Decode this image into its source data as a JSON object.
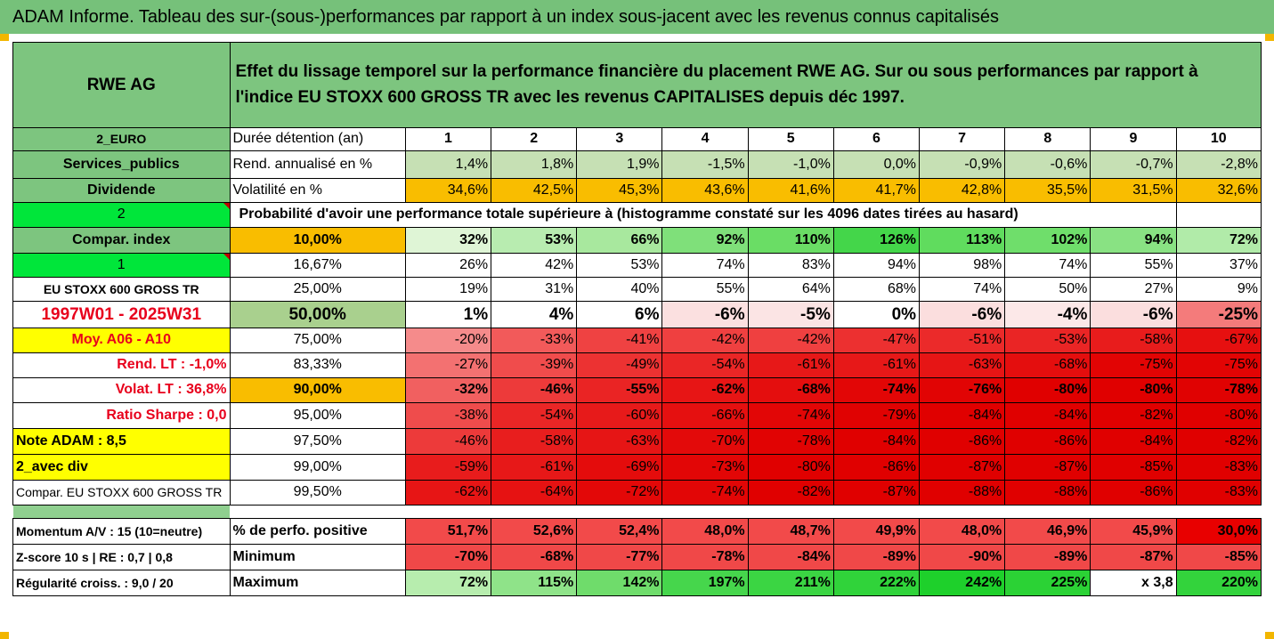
{
  "title": "ADAM Informe. Tableau des sur-(sous-)performances par rapport à un index sous-jacent avec les revenus connus capitalisés",
  "header": {
    "stock": "RWE AG",
    "description": "Effet du lissage temporel sur la performance financière du placement RWE AG. Sur ou sous performances par rapport à l'indice EU STOXX 600 GROSS TR avec les revenus CAPITALISES depuis déc 1997."
  },
  "colors": {
    "title_green": "#76c17a",
    "label_green": "#7dc57f",
    "orange": "#f9bd00",
    "yellow": "#ffff00",
    "bright_green": "#00e63a"
  },
  "rows": [
    {
      "label": "2_EURO",
      "label_bg": "#7dc57f",
      "label_bold": true,
      "label_size": "sm",
      "key": "Durée détention (an)",
      "key_bg": "#ffffff",
      "key_align": "left",
      "type": "header",
      "values": [
        "1",
        "2",
        "3",
        "4",
        "5",
        "6",
        "7",
        "8",
        "9",
        "10"
      ],
      "bgs": [
        "#fff",
        "#fff",
        "#fff",
        "#fff",
        "#fff",
        "#fff",
        "#fff",
        "#fff",
        "#fff",
        "#fff"
      ]
    },
    {
      "label": "Services_publics",
      "label_bg": "#7dc57f",
      "label_bold": true,
      "key": "Rend. annualisé en %",
      "key_bg": "#ffffff",
      "key_align": "left",
      "values": [
        "1,4%",
        "1,8%",
        "1,9%",
        "-1,5%",
        "-1,0%",
        "0,0%",
        "-0,9%",
        "-0,6%",
        "-0,7%",
        "-2,8%"
      ],
      "bgs": [
        "#c6e0b4",
        "#c6e0b4",
        "#c6e0b4",
        "#c6e0b4",
        "#c6e0b4",
        "#c6e0b4",
        "#c6e0b4",
        "#c6e0b4",
        "#c6e0b4",
        "#c6e0b4"
      ]
    },
    {
      "label": "Dividende",
      "label_bg": "#7dc57f",
      "label_bold": true,
      "key": "Volatilité en %",
      "key_bg": "#ffffff",
      "key_align": "left",
      "values": [
        "34,6%",
        "42,5%",
        "45,3%",
        "43,6%",
        "41,6%",
        "41,7%",
        "42,8%",
        "35,5%",
        "31,5%",
        "32,6%"
      ],
      "bgs": [
        "#f9bd00",
        "#f9bd00",
        "#f9bd00",
        "#f9bd00",
        "#f9bd00",
        "#f9bd00",
        "#f9bd00",
        "#f9bd00",
        "#f9bd00",
        "#f9bd00"
      ]
    },
    {
      "label": "2",
      "label_bg": "#00e63a",
      "label_bold": false,
      "flag": true,
      "type": "prob",
      "key": "Probabilité d'avoir une performance totale supérieure à (histogramme constaté sur les 4096 dates tirées au hasard)"
    },
    {
      "label": "Compar. index",
      "label_bg": "#7dc57f",
      "label_bold": true,
      "key": "10,00%",
      "key_bg": "#f9bd00",
      "key_align": "center",
      "bold": true,
      "values": [
        "32%",
        "53%",
        "66%",
        "92%",
        "110%",
        "126%",
        "113%",
        "102%",
        "94%",
        "72%"
      ],
      "bgs": [
        "#dff5d6",
        "#b8ecb0",
        "#a8e89e",
        "#7fe07a",
        "#6add65",
        "#44d64a",
        "#60dc5e",
        "#6fde6b",
        "#89e283",
        "#b1eba9"
      ]
    },
    {
      "label": "1",
      "label_bg": "#00e63a",
      "label_bold": false,
      "flag": true,
      "key": "16,67%",
      "key_bg": "#ffffff",
      "key_align": "center",
      "values": [
        "26%",
        "42%",
        "53%",
        "74%",
        "83%",
        "94%",
        "98%",
        "74%",
        "55%",
        "37%"
      ],
      "bgs": [
        "#ffffff",
        "#ffffff",
        "#ffffff",
        "#ffffff",
        "#ffffff",
        "#ffffff",
        "#ffffff",
        "#ffffff",
        "#ffffff",
        "#ffffff"
      ]
    },
    {
      "label": "EU STOXX 600 GROSS TR",
      "label_bg": "#ffffff",
      "label_bold": true,
      "label_size": "sm",
      "key": "25,00%",
      "key_bg": "#ffffff",
      "key_align": "center",
      "values": [
        "19%",
        "31%",
        "40%",
        "55%",
        "64%",
        "68%",
        "74%",
        "50%",
        "27%",
        "9%"
      ],
      "bgs": [
        "#ffffff",
        "#ffffff",
        "#ffffff",
        "#ffffff",
        "#ffffff",
        "#ffffff",
        "#ffffff",
        "#ffffff",
        "#ffffff",
        "#ffffff"
      ]
    },
    {
      "label": "1997W01 - 2025W31",
      "label_bg": "#ffffff",
      "label_bold": true,
      "label_red": true,
      "big": true,
      "key": "50,00%",
      "key_bg": "#a9d08e",
      "key_align": "center",
      "values": [
        "1%",
        "4%",
        "6%",
        "-6%",
        "-5%",
        "0%",
        "-6%",
        "-4%",
        "-6%",
        "-25%"
      ],
      "bgs": [
        "#ffffff",
        "#ffffff",
        "#ffffff",
        "#fbe0e0",
        "#fbe4e4",
        "#ffffff",
        "#fbdede",
        "#fce8e8",
        "#fbdede",
        "#f47b7b"
      ]
    },
    {
      "label": "Moy. A06 - A10",
      "label_bg": "#ffff00",
      "label_bold": true,
      "label_red": true,
      "key": "75,00%",
      "key_bg": "#ffffff",
      "key_align": "center",
      "values": [
        "-20%",
        "-33%",
        "-41%",
        "-42%",
        "-42%",
        "-47%",
        "-51%",
        "-53%",
        "-58%",
        "-67%"
      ],
      "bgs": [
        "#f58b8b",
        "#f25a5a",
        "#ef4242",
        "#ef4040",
        "#ef4040",
        "#ec3030",
        "#eb2a2a",
        "#ea2525",
        "#e81c1c",
        "#e61010"
      ]
    },
    {
      "label": "Rend. LT :   -1,0%",
      "label_bg": "#ffffff",
      "label_bold": true,
      "label_red": true,
      "label_align": "right",
      "key": "83,33%",
      "key_bg": "#ffffff",
      "key_align": "center",
      "values": [
        "-27%",
        "-39%",
        "-49%",
        "-54%",
        "-61%",
        "-61%",
        "-63%",
        "-68%",
        "-75%",
        "-75%"
      ],
      "bgs": [
        "#f37171",
        "#f04c4c",
        "#ec3232",
        "#ea2626",
        "#e71818",
        "#e71818",
        "#e61515",
        "#e40e0e",
        "#e20404",
        "#e20404"
      ]
    },
    {
      "label": "Volat. LT :   36,8%",
      "label_bg": "#ffffff",
      "label_bold": true,
      "label_red": true,
      "label_align": "right",
      "bold": true,
      "key": "90,00%",
      "key_bg": "#f9bd00",
      "key_align": "center",
      "values": [
        "-32%",
        "-46%",
        "-55%",
        "-62%",
        "-68%",
        "-74%",
        "-76%",
        "-80%",
        "-80%",
        "-78%"
      ],
      "bgs": [
        "#f16060",
        "#ed3a3a",
        "#ea2424",
        "#e71515",
        "#e40e0e",
        "#e20606",
        "#e10404",
        "#e00000",
        "#e00000",
        "#e00202"
      ]
    },
    {
      "label": "Ratio Sharpe :    0,0",
      "label_bg": "#ffffff",
      "label_bold": true,
      "label_red": true,
      "label_align": "right",
      "key": "95,00%",
      "key_bg": "#ffffff",
      "key_align": "center",
      "values": [
        "-38%",
        "-54%",
        "-60%",
        "-66%",
        "-74%",
        "-79%",
        "-84%",
        "-84%",
        "-82%",
        "-80%"
      ],
      "bgs": [
        "#ef4c4c",
        "#ea2626",
        "#e71a1a",
        "#e51010",
        "#e20606",
        "#e00202",
        "#e00000",
        "#e00000",
        "#e00000",
        "#e00000"
      ]
    },
    {
      "label": "Note ADAM : 8,5",
      "label_bg": "#ffff00",
      "label_bold": true,
      "label_align": "left",
      "key": "97,50%",
      "key_bg": "#ffffff",
      "key_align": "center",
      "values": [
        "-46%",
        "-58%",
        "-63%",
        "-70%",
        "-78%",
        "-84%",
        "-86%",
        "-86%",
        "-84%",
        "-82%"
      ],
      "bgs": [
        "#ed3a3a",
        "#e81e1e",
        "#e61515",
        "#e30a0a",
        "#e10303",
        "#e00000",
        "#e00000",
        "#e00000",
        "#e00000",
        "#e00000"
      ]
    },
    {
      "label": "2_avec div",
      "label_bg": "#ffff00",
      "label_bold": true,
      "label_align": "left",
      "key": "99,00%",
      "key_bg": "#ffffff",
      "key_align": "center",
      "values": [
        "-59%",
        "-61%",
        "-69%",
        "-73%",
        "-80%",
        "-86%",
        "-87%",
        "-87%",
        "-85%",
        "-83%"
      ],
      "bgs": [
        "#e81c1c",
        "#e71818",
        "#e40c0c",
        "#e20606",
        "#e00000",
        "#e00000",
        "#e00000",
        "#e00000",
        "#e00000",
        "#e00000"
      ]
    },
    {
      "label": "Compar. EU STOXX 600 GROSS TR",
      "label_bg": "#ffffff",
      "label_bold": false,
      "label_size": "sm",
      "label_align": "left",
      "key": "99,50%",
      "key_bg": "#ffffff",
      "key_align": "center",
      "values": [
        "-62%",
        "-64%",
        "-72%",
        "-74%",
        "-82%",
        "-87%",
        "-88%",
        "-88%",
        "-86%",
        "-83%"
      ],
      "bgs": [
        "#e71515",
        "#e61212",
        "#e30808",
        "#e20606",
        "#e00000",
        "#e00000",
        "#e00000",
        "#e00000",
        "#e00000",
        "#e00000"
      ]
    }
  ],
  "footer_rows": [
    {
      "label": "Momentum A/V : 15 (10=neutre)",
      "key": "% de perfo. positive",
      "values": [
        "51,7%",
        "52,6%",
        "52,4%",
        "48,0%",
        "48,7%",
        "49,9%",
        "48,0%",
        "46,9%",
        "45,9%",
        "30,0%"
      ],
      "bgs": [
        "#f24a4a",
        "#f24a4a",
        "#f24a4a",
        "#f24a4a",
        "#f24a4a",
        "#f24a4a",
        "#f24a4a",
        "#f24a4a",
        "#f24a4a",
        "#e80000"
      ]
    },
    {
      "label": "Z-score 10 s  | RE : 0,7  | 0,8",
      "key": "Minimum",
      "values": [
        "-70%",
        "-68%",
        "-77%",
        "-78%",
        "-84%",
        "-89%",
        "-90%",
        "-89%",
        "-87%",
        "-85%"
      ],
      "bgs": [
        "#f04848",
        "#f04848",
        "#f04848",
        "#f04848",
        "#f04848",
        "#f04848",
        "#f04848",
        "#f04848",
        "#f04848",
        "#f04848"
      ]
    },
    {
      "label": "Régularité croiss. : 9,0 / 20",
      "key": "Maximum",
      "values": [
        "72%",
        "115%",
        "142%",
        "197%",
        "211%",
        "222%",
        "242%",
        "225%",
        "x 3,8",
        "220%"
      ],
      "bgs": [
        "#b7edae",
        "#8fe389",
        "#6fdc6b",
        "#46d64c",
        "#3bd543",
        "#30d33a",
        "#1ed02b",
        "#2bd235",
        "#ffffff",
        "#33d33c"
      ]
    }
  ]
}
